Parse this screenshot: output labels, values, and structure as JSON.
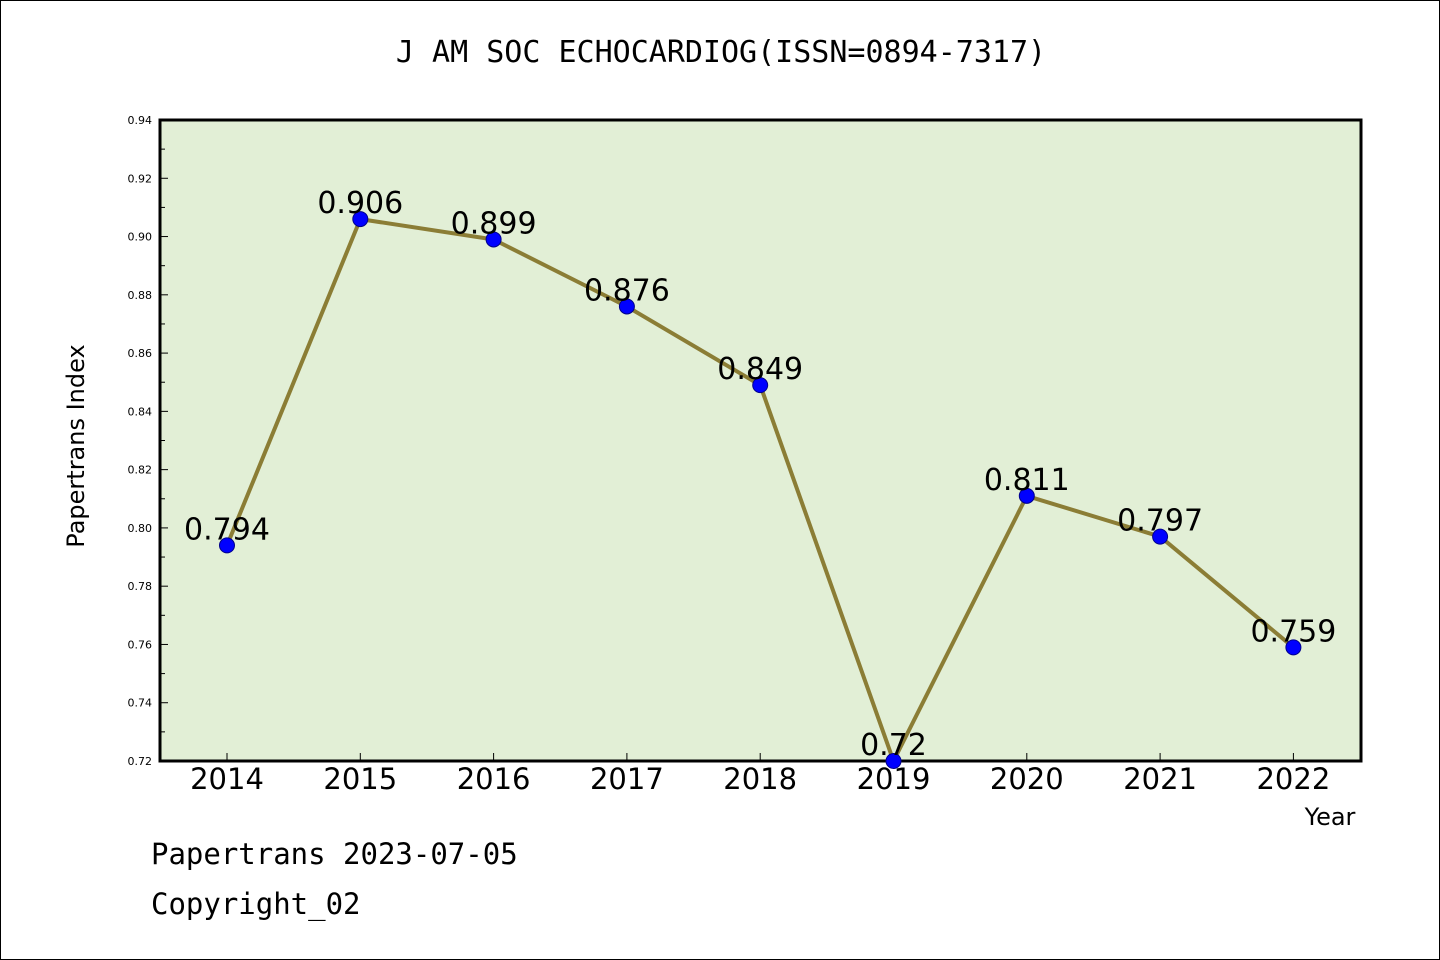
{
  "chart_data": {
    "type": "line",
    "title": "J AM SOC ECHOCARDIOG(ISSN=0894-7317)",
    "xlabel": "Year",
    "ylabel": "Papertrans Index",
    "categories": [
      "2014",
      "2015",
      "2016",
      "2017",
      "2018",
      "2019",
      "2020",
      "2021",
      "2022"
    ],
    "values": [
      0.794,
      0.906,
      0.899,
      0.876,
      0.849,
      0.72,
      0.811,
      0.797,
      0.759
    ],
    "data_labels": [
      "0.794",
      "0.906",
      "0.899",
      "0.876",
      "0.849",
      "0.72",
      "0.811",
      "0.797",
      "0.759"
    ],
    "ylim": [
      0.72,
      0.94
    ],
    "yticks": [
      "0.72",
      "0.74",
      "0.76",
      "0.78",
      "0.80",
      "0.82",
      "0.84",
      "0.86",
      "0.88",
      "0.90",
      "0.92",
      "0.94"
    ],
    "grid": false,
    "colors": {
      "plot_background": "#e2efd6",
      "line": "#8b7d35",
      "marker": "#0000ff"
    }
  },
  "footer": {
    "line1": "Papertrans 2023-07-05",
    "line2": "Copyright_02"
  }
}
